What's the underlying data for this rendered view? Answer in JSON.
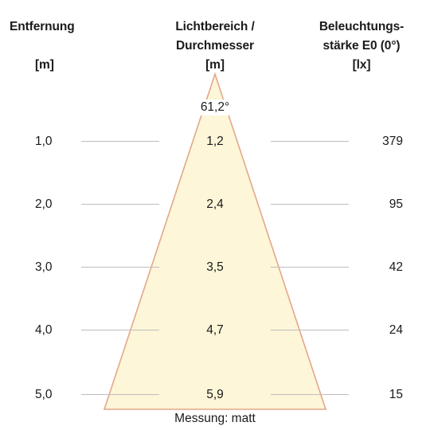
{
  "headers": {
    "distance": {
      "title": "Entfernung",
      "unit": "[m]"
    },
    "diameter": {
      "title_line1": "Lichtbereich /",
      "title_line2": "Durchmesser",
      "unit": "[m]"
    },
    "illuminance": {
      "title_line1": "Beleuchtungs-",
      "title_line2": "stärke E0 (0°)",
      "unit": "[lx]"
    }
  },
  "beam": {
    "angle_label": "61,2°",
    "fill_color": "#fdf6d8",
    "edge_color": "#e3a78a"
  },
  "rows": [
    {
      "distance": "1,0",
      "diameter": "1,2",
      "illuminance": "379"
    },
    {
      "distance": "2,0",
      "diameter": "2,4",
      "illuminance": "95"
    },
    {
      "distance": "3,0",
      "diameter": "3,5",
      "illuminance": "42"
    },
    {
      "distance": "4,0",
      "diameter": "4,7",
      "illuminance": "24"
    },
    {
      "distance": "5,0",
      "diameter": "5,9",
      "illuminance": "15"
    }
  ],
  "footnote": "Messung: matt"
}
